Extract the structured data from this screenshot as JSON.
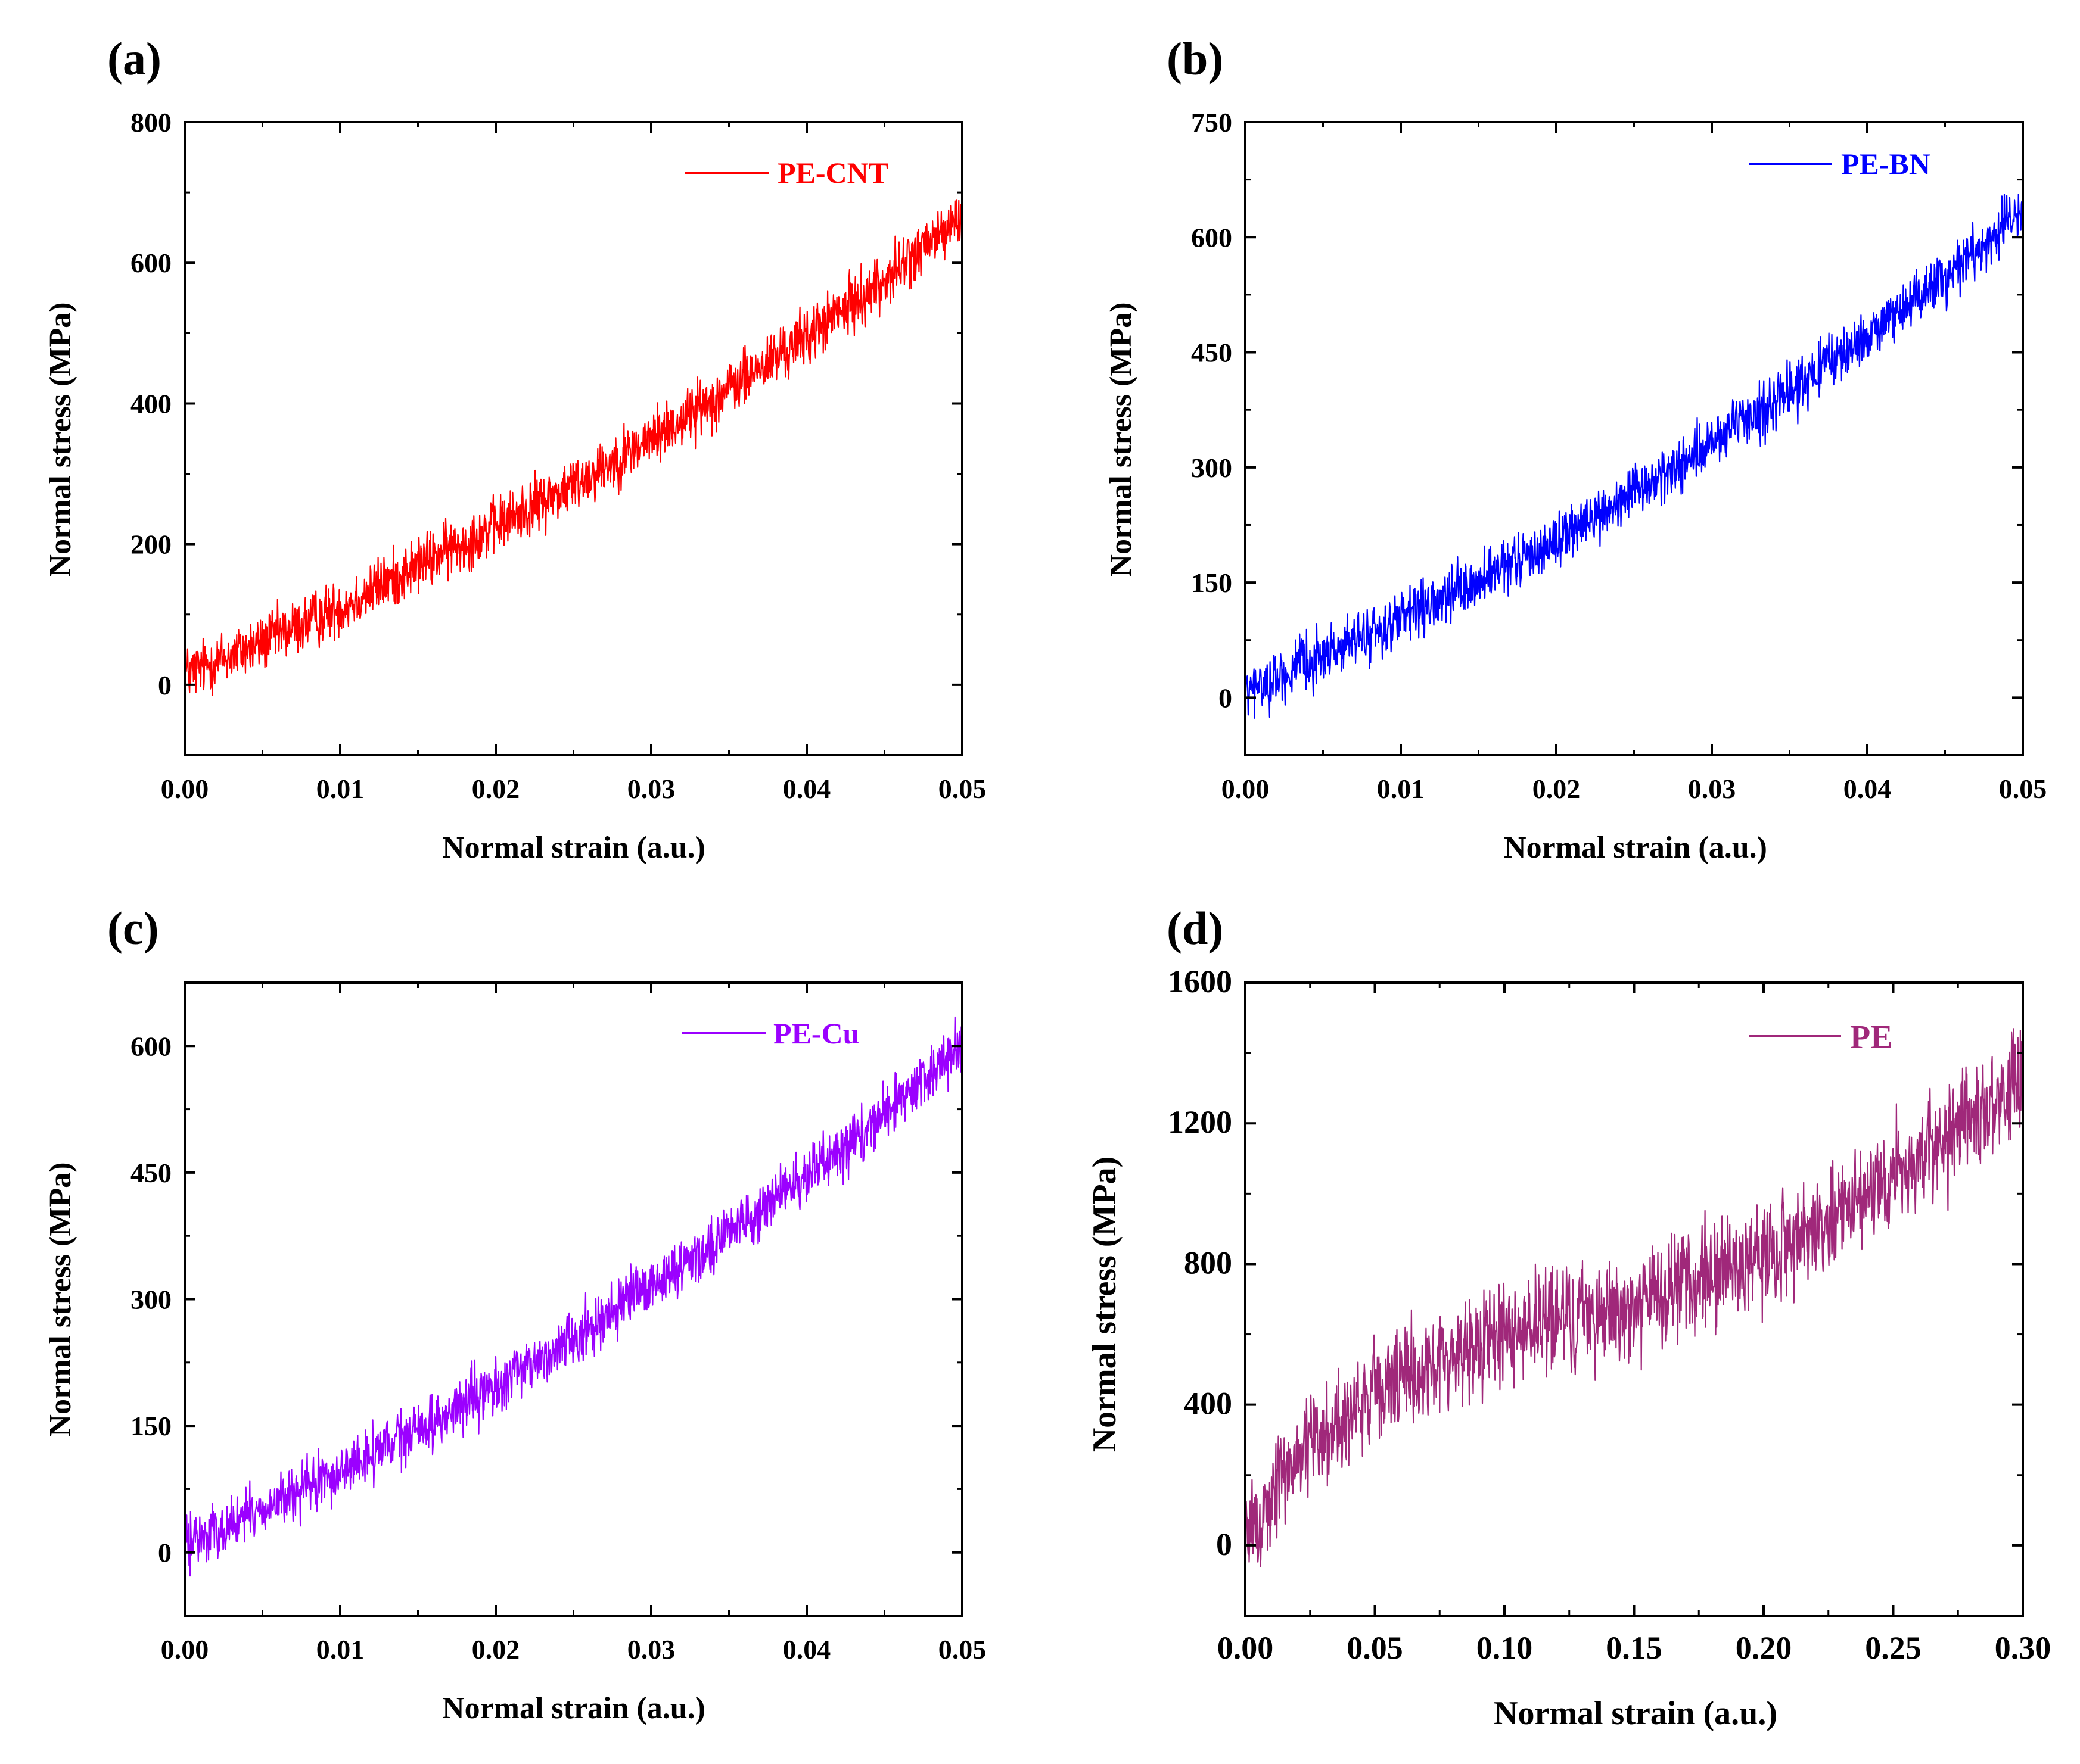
{
  "figure": {
    "panel_count": 4
  },
  "chart_data": [
    {
      "panel": "(a)",
      "type": "line",
      "title": "",
      "xlabel": "Normal strain (a.u.)",
      "ylabel": "Normal stress (MPa)",
      "xlim": [
        0,
        0.05
      ],
      "ylim": [
        -100,
        800
      ],
      "xticks": [
        0.0,
        0.01,
        0.02,
        0.03,
        0.04,
        0.05
      ],
      "xtick_labels": [
        "0.00",
        "0.01",
        "0.02",
        "0.03",
        "0.04",
        "0.05"
      ],
      "yticks": [
        0,
        200,
        400,
        600,
        800
      ],
      "ytick_labels": [
        "0",
        "200",
        "400",
        "600",
        "800"
      ],
      "legend_position": "top-right",
      "series": [
        {
          "name": "PE-CNT",
          "color": "#ff0000",
          "noise_amplitude": 35,
          "x": [
            0.0,
            0.005,
            0.01,
            0.015,
            0.02,
            0.025,
            0.03,
            0.035,
            0.04,
            0.045,
            0.05
          ],
          "trend": [
            15,
            60,
            110,
            170,
            225,
            285,
            350,
            420,
            495,
            575,
            665
          ]
        }
      ]
    },
    {
      "panel": "(b)",
      "type": "line",
      "title": "",
      "xlabel": "Normal strain (a.u.)",
      "ylabel": "Normal stress (MPa)",
      "xlim": [
        0,
        0.05
      ],
      "ylim": [
        -75,
        750
      ],
      "xticks": [
        0.0,
        0.01,
        0.02,
        0.03,
        0.04,
        0.05
      ],
      "xtick_labels": [
        "0.00",
        "0.01",
        "0.02",
        "0.03",
        "0.04",
        "0.05"
      ],
      "yticks": [
        0,
        150,
        300,
        450,
        600,
        750
      ],
      "ytick_labels": [
        "0",
        "150",
        "300",
        "450",
        "600",
        "750"
      ],
      "legend_position": "top-right",
      "series": [
        {
          "name": "PE-BN",
          "color": "#0000ff",
          "noise_amplitude": 30,
          "x": [
            0.0,
            0.005,
            0.01,
            0.015,
            0.02,
            0.025,
            0.03,
            0.035,
            0.04,
            0.045,
            0.05
          ],
          "trend": [
            5,
            55,
            100,
            150,
            205,
            265,
            330,
            400,
            470,
            550,
            635
          ]
        }
      ]
    },
    {
      "panel": "(c)",
      "type": "line",
      "title": "",
      "xlabel": "Normal strain (a.u.)",
      "ylabel": "Normal stress (MPa)",
      "xlim": [
        0,
        0.05
      ],
      "ylim": [
        -75,
        675
      ],
      "xticks": [
        0.0,
        0.01,
        0.02,
        0.03,
        0.04,
        0.05
      ],
      "xtick_labels": [
        "0.00",
        "0.01",
        "0.02",
        "0.03",
        "0.04",
        "0.05"
      ],
      "yticks": [
        0,
        150,
        300,
        450,
        600
      ],
      "ytick_labels": [
        "0",
        "150",
        "300",
        "450",
        "600"
      ],
      "legend_position": "top-right",
      "series": [
        {
          "name": "PE-Cu",
          "color": "#9b00ff",
          "noise_amplitude": 28,
          "x": [
            0.0,
            0.005,
            0.01,
            0.015,
            0.02,
            0.025,
            0.03,
            0.035,
            0.04,
            0.045,
            0.05
          ],
          "trend": [
            10,
            50,
            95,
            145,
            195,
            255,
            315,
            380,
            445,
            520,
            600
          ]
        }
      ]
    },
    {
      "panel": "(d)",
      "type": "line",
      "title": "",
      "xlabel": "Normal strain (a.u.)",
      "ylabel": "Normal stress (MPa)",
      "xlim": [
        0,
        0.3
      ],
      "ylim": [
        -200,
        1600
      ],
      "xticks": [
        0.0,
        0.05,
        0.1,
        0.15,
        0.2,
        0.25,
        0.3
      ],
      "xtick_labels": [
        "0.00",
        "0.05",
        "0.10",
        "0.15",
        "0.20",
        "0.25",
        "0.30"
      ],
      "yticks": [
        0,
        400,
        800,
        1200,
        1600
      ],
      "ytick_labels": [
        "0",
        "400",
        "800",
        "1200",
        "1600"
      ],
      "legend_position": "top-right",
      "series": [
        {
          "name": "PE",
          "color": "#a0287a",
          "noise_amplitude": 130,
          "x": [
            0.0,
            0.02,
            0.05,
            0.08,
            0.1,
            0.15,
            0.2,
            0.25,
            0.3
          ],
          "trend": [
            0,
            260,
            430,
            540,
            610,
            680,
            820,
            1050,
            1300
          ]
        }
      ]
    }
  ]
}
